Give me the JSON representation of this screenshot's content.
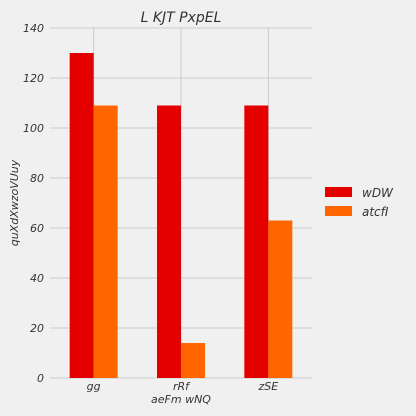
{
  "chart_data": {
    "type": "bar",
    "title": "L KJT PxpEL",
    "xlabel": "aeFm wNQ",
    "ylabel": "quXdXwzoVUuy",
    "categories": [
      "gg",
      "rRf",
      "zSE"
    ],
    "series": [
      {
        "name": "wDW",
        "color": "#e50000",
        "values": [
          130,
          109,
          109
        ]
      },
      {
        "name": "atcfI",
        "color": "#ff6600",
        "values": [
          109,
          14,
          63
        ]
      }
    ],
    "ylim": [
      0,
      140
    ],
    "yticks": [
      0,
      20,
      40,
      60,
      80,
      100,
      120,
      140
    ],
    "grid": true,
    "legend_position": "right"
  }
}
